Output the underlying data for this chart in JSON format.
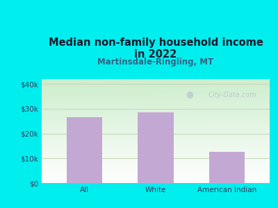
{
  "categories": [
    "All",
    "White",
    "American Indian"
  ],
  "values": [
    26500,
    28500,
    12500
  ],
  "bar_color": "#C4A8D4",
  "title_line1": "Median non-family household income",
  "title_line2": "in 2022",
  "subtitle": "Martinsdale-Ringling, MT",
  "background_color": "#00EEEE",
  "plot_bg_topleft": "#C8E8C0",
  "plot_bg_bottomright": "#F8FFF0",
  "plot_bg_topright": "#E8F4F8",
  "yticks": [
    0,
    10000,
    20000,
    30000,
    40000
  ],
  "ytick_labels": [
    "$0",
    "$10k",
    "$20k",
    "$30k",
    "$40k"
  ],
  "ylim": [
    0,
    42000
  ],
  "watermark": "City-Data.com",
  "title_color": "#1a1a2e",
  "subtitle_color": "#3a6080",
  "tick_color": "#3a3a5a",
  "grid_color": "#c8d8b8"
}
